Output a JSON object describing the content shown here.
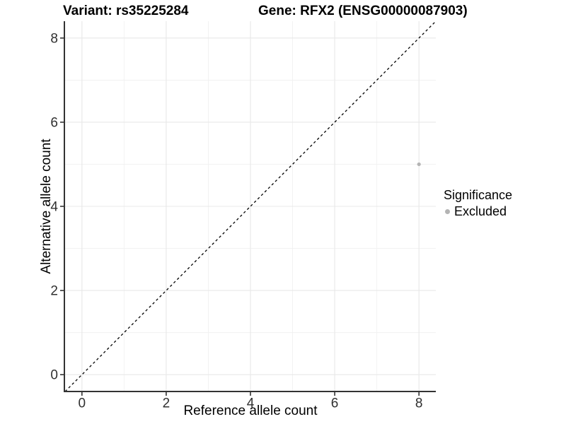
{
  "titles": {
    "variant": "Variant: rs35225284",
    "gene": "Gene: RFX2 (ENSG00000087903)"
  },
  "chart_data": {
    "type": "scatter",
    "xlabel": "Reference allele count",
    "ylabel": "Alternative allele count",
    "x_ticks": [
      "0",
      "2",
      "4",
      "6",
      "8"
    ],
    "y_ticks": [
      "0",
      "2",
      "4",
      "6",
      "8"
    ],
    "x_tick_values": [
      0,
      2,
      4,
      6,
      8
    ],
    "y_tick_values": [
      0,
      2,
      4,
      6,
      8
    ],
    "xlim": [
      -0.4,
      8.4
    ],
    "ylim": [
      -0.4,
      8.4
    ],
    "grid": {
      "major": true,
      "minor": true
    },
    "points": [
      {
        "x": 8,
        "y": 5,
        "series": "Excluded"
      }
    ],
    "reference_line": {
      "slope": 1,
      "intercept": 0,
      "style": "dashed",
      "color": "#000000"
    },
    "legend": {
      "title": "Significance",
      "position": "right",
      "entries": [
        {
          "label": "Excluded",
          "color": "#b4b4b4"
        }
      ]
    },
    "style": {
      "major_grid_color": "#e8e8e8",
      "minor_grid_color": "#f1f1f1",
      "axis_color": "#333333",
      "tick_text_color": "#303030",
      "point_radius": 2.6,
      "legend_dot_radius": 3.5
    }
  }
}
